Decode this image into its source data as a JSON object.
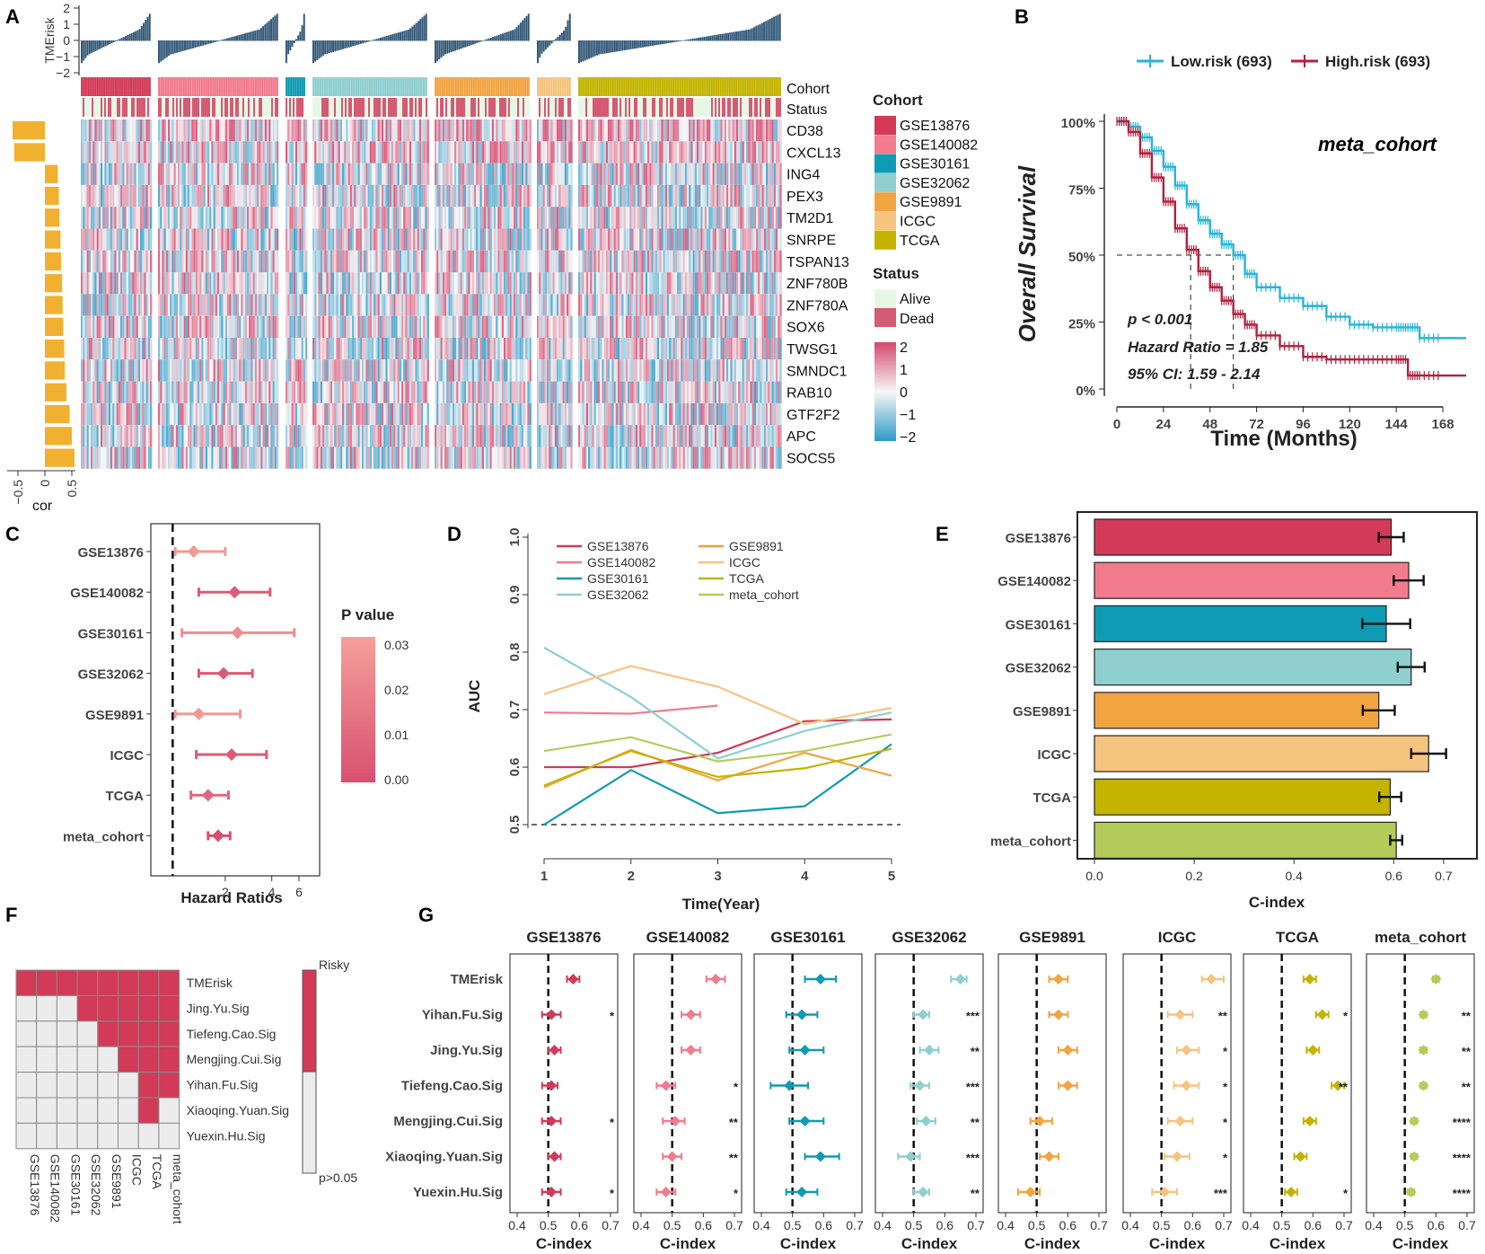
{
  "panel_letters": [
    "A",
    "B",
    "C",
    "D",
    "E",
    "F",
    "G"
  ],
  "colors": {
    "GSE13876": "#d23a57",
    "GSE140082": "#f27b8e",
    "GSE30161": "#0f9bb4",
    "GSE32062": "#8fcfcf",
    "GSE9891": "#f2a441",
    "ICGC": "#f5c47f",
    "TCGA": "#c4b400",
    "meta_cohort": "#b5cc5a",
    "cor_bar": "#f2b030",
    "low_risk": "#27b5d8",
    "high_risk": "#b0203c",
    "risky": "#d23a57",
    "nonsig": "#ececec"
  },
  "panel_a": {
    "top_axis_label": "TMErisk",
    "top_ticks": [
      "2",
      "1",
      "0",
      "−1",
      "−2"
    ],
    "row_labels": [
      "Cohort",
      "Status"
    ],
    "genes": [
      "CD38",
      "CXCL13",
      "ING4",
      "PEX3",
      "TM2D1",
      "SNRPE",
      "TSPAN13",
      "ZNF780B",
      "ZNF780A",
      "SOX6",
      "TWSG1",
      "SMNDC1",
      "RAB10",
      "GTF2F2",
      "APC",
      "SOCS5"
    ],
    "cor_values": [
      -0.6,
      -0.57,
      0.24,
      0.26,
      0.27,
      0.29,
      0.3,
      0.32,
      0.33,
      0.34,
      0.36,
      0.37,
      0.4,
      0.46,
      0.5,
      0.55
    ],
    "cor_axis_label": "cor",
    "cor_ticks": [
      "−0.5",
      "0",
      "0.5"
    ],
    "cohort_legend_title": "Cohort",
    "cohort_legend": [
      "GSE13876",
      "GSE140082",
      "GSE30161",
      "GSE32062",
      "GSE9891",
      "ICGC",
      "TCGA"
    ],
    "status_legend_title": "Status",
    "status_legend": [
      "Alive",
      "Dead"
    ],
    "scale_ticks": [
      "2",
      "1",
      "0",
      "−1",
      "−2"
    ]
  },
  "panel_b": {
    "legend": [
      "Low.risk (693)",
      "High.risk (693)"
    ],
    "title": "meta_cohort",
    "ylabel": "Overall Survival",
    "xlabel": "Time (Months)",
    "yticks": [
      "100%",
      "75%",
      "50%",
      "25%",
      "0%"
    ],
    "xticks": [
      "0",
      "24",
      "48",
      "72",
      "96",
      "120",
      "144",
      "168"
    ],
    "p_text": "p < 0.001",
    "hr_text": "Hazard Ratio = 1.85",
    "ci_text": "95% CI: 1.59 - 2.14",
    "median_low": 60,
    "median_high": 38,
    "chart_data": {
      "type": "line",
      "x_unit": "months",
      "xlim": [
        0,
        180
      ],
      "ylim": [
        0,
        1
      ],
      "series": [
        {
          "name": "Low.risk (693)",
          "x": [
            0,
            6,
            12,
            18,
            24,
            30,
            36,
            42,
            48,
            54,
            60,
            66,
            72,
            84,
            96,
            108,
            120,
            132,
            144,
            150,
            156,
            168,
            180
          ],
          "y": [
            1,
            0.98,
            0.94,
            0.89,
            0.83,
            0.76,
            0.69,
            0.63,
            0.58,
            0.54,
            0.5,
            0.43,
            0.38,
            0.34,
            0.31,
            0.27,
            0.24,
            0.23,
            0.23,
            0.23,
            0.19,
            0.19,
            0.19
          ]
        },
        {
          "name": "High.risk (693)",
          "x": [
            0,
            6,
            12,
            18,
            24,
            30,
            36,
            42,
            48,
            54,
            60,
            66,
            72,
            84,
            96,
            108,
            120,
            132,
            144,
            150,
            156,
            168,
            180
          ],
          "y": [
            1,
            0.96,
            0.88,
            0.79,
            0.7,
            0.6,
            0.52,
            0.44,
            0.38,
            0.33,
            0.28,
            0.24,
            0.2,
            0.16,
            0.12,
            0.11,
            0.11,
            0.11,
            0.11,
            0.05,
            0.05,
            0.05,
            0.05
          ]
        }
      ]
    }
  },
  "panel_c": {
    "xlabel": "Hazard Ratios",
    "xticks": [
      "2",
      "4",
      "6"
    ],
    "legend_title": "P value",
    "legend_ticks": [
      "0.03",
      "0.02",
      "0.01",
      "0.00"
    ],
    "chart_data": {
      "type": "forest",
      "cohorts": [
        "GSE13876",
        "GSE140082",
        "GSE30161",
        "GSE32062",
        "GSE9891",
        "ICGC",
        "TCGA",
        "meta_cohort"
      ],
      "hr": [
        1.25,
        2.3,
        2.4,
        1.95,
        1.35,
        2.2,
        1.55,
        1.8
      ],
      "lower": [
        0.95,
        1.35,
        1.05,
        1.35,
        0.95,
        1.3,
        1.2,
        1.55
      ],
      "upper": [
        2.0,
        3.9,
        5.6,
        3.0,
        2.5,
        3.7,
        2.1,
        2.15
      ],
      "p": [
        0.03,
        0.005,
        0.025,
        0.004,
        0.03,
        0.005,
        0.01,
        0.0
      ]
    }
  },
  "panel_d": {
    "xlabel": "Time(Year)",
    "ylabel": "AUC",
    "xticks": [
      "1",
      "2",
      "3",
      "4",
      "5"
    ],
    "yticks": [
      "0.5",
      "0.6",
      "0.7",
      "0.8",
      "0.9",
      "1.0"
    ],
    "chart_data": {
      "type": "line",
      "x": [
        1,
        2,
        3,
        4,
        5
      ],
      "ylim": [
        0.5,
        1.0
      ],
      "series": [
        {
          "name": "GSE13876",
          "x": [
            1,
            2,
            3,
            4,
            5
          ],
          "y": [
            0.6,
            0.6,
            0.625,
            0.68,
            0.683
          ]
        },
        {
          "name": "GSE140082",
          "x": [
            1,
            2,
            3
          ],
          "y": [
            0.695,
            0.693,
            0.707
          ]
        },
        {
          "name": "GSE30161",
          "x": [
            1,
            2,
            3,
            4,
            5
          ],
          "y": [
            0.5,
            0.595,
            0.52,
            0.532,
            0.64
          ]
        },
        {
          "name": "GSE32062",
          "x": [
            1,
            2,
            3,
            4,
            5
          ],
          "y": [
            0.808,
            0.722,
            0.615,
            0.663,
            0.695
          ]
        },
        {
          "name": "GSE9891",
          "x": [
            1,
            2,
            3,
            4,
            5
          ],
          "y": [
            0.565,
            0.63,
            0.577,
            0.625,
            0.585
          ]
        },
        {
          "name": "ICGC",
          "x": [
            1,
            2,
            3,
            4,
            5
          ],
          "y": [
            0.727,
            0.776,
            0.74,
            0.675,
            0.703
          ]
        },
        {
          "name": "TCGA",
          "x": [
            1,
            2,
            3,
            4,
            5
          ],
          "y": [
            0.568,
            0.628,
            0.583,
            0.598,
            0.632
          ]
        },
        {
          "name": "meta_cohort",
          "x": [
            1,
            2,
            3,
            4,
            5
          ],
          "y": [
            0.628,
            0.652,
            0.61,
            0.628,
            0.657
          ]
        }
      ],
      "reference_line": 0.5
    }
  },
  "panel_e": {
    "xlabel": "C-index",
    "xticks": [
      "0.0",
      "0.2",
      "0.4",
      "0.6",
      "0.7"
    ],
    "chart_data": {
      "type": "bar",
      "orientation": "horizontal",
      "categories": [
        "GSE13876",
        "GSE140082",
        "GSE30161",
        "GSE32062",
        "GSE9891",
        "ICGC",
        "TCGA",
        "meta_cohort"
      ],
      "values": [
        0.595,
        0.63,
        0.585,
        0.635,
        0.57,
        0.67,
        0.593,
        0.605
      ],
      "errors": [
        0.025,
        0.03,
        0.048,
        0.027,
        0.032,
        0.035,
        0.022,
        0.012
      ],
      "xlim": [
        0,
        0.72
      ]
    }
  },
  "panel_f": {
    "rows": [
      "TMErisk",
      "Jing.Yu.Sig",
      "Tiefeng.Cao.Sig",
      "Mengjing.Cui.Sig",
      "Yihan.Fu.Sig",
      "Xiaoqing.Yuan.Sig",
      "Yuexin.Hu.Sig"
    ],
    "columns": [
      "GSE13876",
      "GSE140082",
      "GSE30161",
      "GSE32062",
      "GSE9891",
      "ICGC",
      "TCGA",
      "meta_cohort"
    ],
    "legend_top": "Risky",
    "legend_bottom": "p>0.05",
    "chart_data": {
      "type": "heatmap",
      "values": [
        [
          1,
          1,
          1,
          1,
          1,
          1,
          1,
          1
        ],
        [
          0,
          0,
          0,
          1,
          1,
          1,
          1,
          1
        ],
        [
          0,
          0,
          0,
          0,
          1,
          1,
          1,
          1
        ],
        [
          0,
          0,
          0,
          0,
          0,
          1,
          1,
          1
        ],
        [
          0,
          0,
          0,
          0,
          0,
          0,
          1,
          1
        ],
        [
          0,
          0,
          0,
          0,
          0,
          0,
          1,
          0
        ],
        [
          0,
          0,
          0,
          0,
          0,
          0,
          0,
          0
        ]
      ]
    }
  },
  "panel_g": {
    "signatures": [
      "TMErisk",
      "Yihan.Fu.Sig",
      "Jing.Yu.Sig",
      "Tiefeng.Cao.Sig",
      "Mengjing.Cui.Sig",
      "Xiaoqing.Yuan.Sig",
      "Yuexin.Hu.Sig"
    ],
    "xlabel": "C-index",
    "xticks": [
      "0.4",
      "0.5",
      "0.6",
      "0.7"
    ],
    "chart_data": {
      "type": "forest",
      "xlim": [
        0.4,
        0.7
      ],
      "facets": [
        {
          "cohort": "GSE13876",
          "c": [
            0.58,
            0.51,
            0.52,
            0.51,
            0.51,
            0.52,
            0.51
          ],
          "lo": [
            0.56,
            0.48,
            0.5,
            0.48,
            0.48,
            0.5,
            0.48
          ],
          "hi": [
            0.6,
            0.54,
            0.54,
            0.53,
            0.54,
            0.54,
            0.54
          ],
          "sig": [
            "",
            "*",
            "",
            "",
            "*",
            "",
            "*"
          ]
        },
        {
          "cohort": "GSE140082",
          "c": [
            0.64,
            0.56,
            0.56,
            0.48,
            0.51,
            0.5,
            0.48
          ],
          "lo": [
            0.61,
            0.53,
            0.53,
            0.45,
            0.47,
            0.47,
            0.45
          ],
          "hi": [
            0.67,
            0.59,
            0.59,
            0.51,
            0.54,
            0.53,
            0.51
          ],
          "sig": [
            "",
            "",
            "",
            "*",
            "**",
            "**",
            "*"
          ]
        },
        {
          "cohort": "GSE30161",
          "c": [
            0.59,
            0.53,
            0.54,
            0.49,
            0.54,
            0.59,
            0.53
          ],
          "lo": [
            0.54,
            0.48,
            0.49,
            0.43,
            0.49,
            0.54,
            0.48
          ],
          "hi": [
            0.64,
            0.58,
            0.6,
            0.55,
            0.6,
            0.65,
            0.58
          ],
          "sig": [
            "",
            "",
            "",
            "",
            "",
            "",
            ""
          ]
        },
        {
          "cohort": "GSE32062",
          "c": [
            0.65,
            0.53,
            0.55,
            0.52,
            0.54,
            0.49,
            0.53
          ],
          "lo": [
            0.62,
            0.5,
            0.52,
            0.49,
            0.51,
            0.45,
            0.5
          ],
          "hi": [
            0.67,
            0.55,
            0.58,
            0.55,
            0.57,
            0.52,
            0.55
          ],
          "sig": [
            "",
            "***",
            "**",
            "***",
            "**",
            "***",
            "**"
          ]
        },
        {
          "cohort": "GSE9891",
          "c": [
            0.57,
            0.57,
            0.6,
            0.6,
            0.51,
            0.54,
            0.48
          ],
          "lo": [
            0.54,
            0.54,
            0.57,
            0.57,
            0.48,
            0.51,
            0.44
          ],
          "hi": [
            0.6,
            0.6,
            0.63,
            0.63,
            0.55,
            0.57,
            0.51
          ],
          "sig": [
            "",
            "",
            "",
            "",
            "",
            "",
            ""
          ]
        },
        {
          "cohort": "ICGC",
          "c": [
            0.66,
            0.56,
            0.58,
            0.58,
            0.56,
            0.55,
            0.51
          ],
          "lo": [
            0.63,
            0.52,
            0.55,
            0.54,
            0.52,
            0.51,
            0.47
          ],
          "hi": [
            0.7,
            0.6,
            0.62,
            0.62,
            0.6,
            0.59,
            0.55
          ],
          "sig": [
            "",
            "**",
            "*",
            "*",
            "*",
            "*",
            "***"
          ]
        },
        {
          "cohort": "TCGA",
          "c": [
            0.59,
            0.63,
            0.6,
            0.68,
            0.59,
            0.56,
            0.53
          ],
          "lo": [
            0.57,
            0.61,
            0.58,
            0.66,
            0.57,
            0.54,
            0.51
          ],
          "hi": [
            0.61,
            0.65,
            0.62,
            0.7,
            0.61,
            0.58,
            0.55
          ],
          "sig": [
            "",
            "*",
            "",
            "**",
            "",
            "",
            "*"
          ]
        },
        {
          "cohort": "meta_cohort",
          "c": [
            0.6,
            0.56,
            0.56,
            0.56,
            0.53,
            0.53,
            0.52
          ],
          "lo": [
            0.59,
            0.55,
            0.55,
            0.55,
            0.52,
            0.52,
            0.51
          ],
          "hi": [
            0.61,
            0.57,
            0.57,
            0.57,
            0.54,
            0.54,
            0.53
          ],
          "sig": [
            "",
            "**",
            "**",
            "**",
            "****",
            "****",
            "****"
          ]
        }
      ]
    }
  }
}
